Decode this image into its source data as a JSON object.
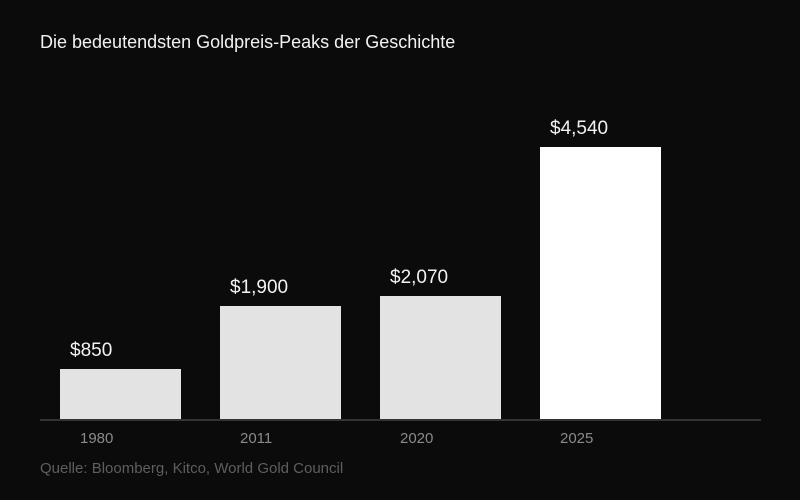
{
  "title": "Die bedeutendsten Goldpreis-Peaks der Geschichte",
  "source": "Quelle: Bloomberg, Kitco, World Gold Council",
  "colors": {
    "background": "#0b0b0b",
    "bar": "#e3e3e3",
    "highlight_bar": "#ffffff",
    "axis": "#333333"
  },
  "chart_data": {
    "type": "bar",
    "title": "Die bedeutendsten Goldpreis-Peaks der Geschichte",
    "xlabel": "",
    "ylabel": "",
    "categories": [
      "1980",
      "2011",
      "2020",
      "2025"
    ],
    "values": [
      850,
      1900,
      2070,
      4540
    ],
    "labels": [
      "$850",
      "$1,900",
      "$2,070",
      "$4,540"
    ],
    "unit": "USD",
    "ylim": [
      0,
      5000
    ],
    "grid": false,
    "legend": null,
    "highlight": "2025",
    "source": "Quelle: Bloomberg, Kitco, World Gold Council"
  }
}
